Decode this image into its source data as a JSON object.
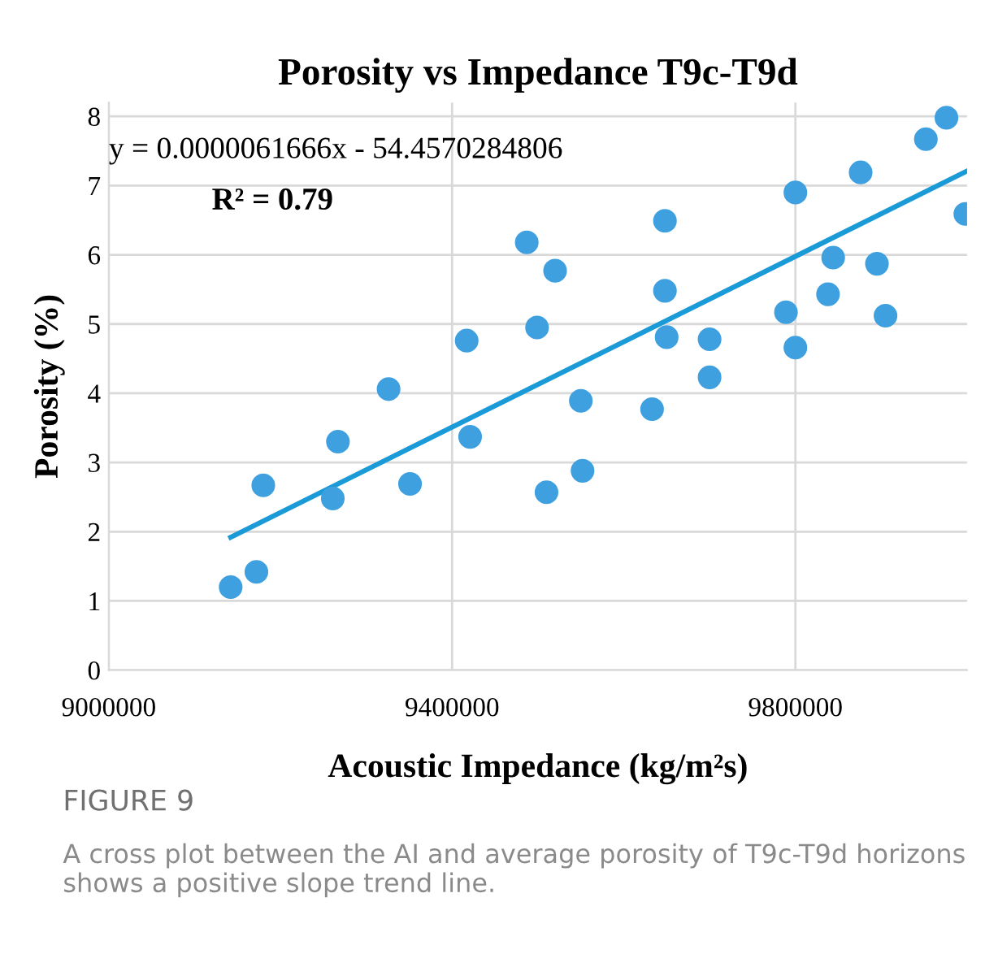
{
  "chart_data": {
    "type": "scatter",
    "title": "Porosity vs Impedance T9c-T9d",
    "xlabel": "Acoustic Impedance (kg/m²s)",
    "ylabel": "Porosity (%)",
    "annotations": [
      "y = 0.0000061666x - 54.4570284806",
      "R² = 0.79",
      "FIGURE 9",
      "A cross plot between the AI and average porosity of T9c-T9d horizons shows a positive slope trend line."
    ],
    "series": [
      {
        "color": "#3fa0e0",
        "marker": "circle",
        "x": [
          9142000,
          9172000,
          9180000,
          9267000,
          9261000,
          9326000,
          9351000,
          9417000,
          9421000,
          9487000,
          9520000,
          9499000,
          9510000,
          9550000,
          9552000,
          9648000,
          9648000,
          9650000,
          9633000,
          9700000,
          9700000,
          9789000,
          9800000,
          9800000,
          9838000,
          9844000,
          9876000,
          9895000,
          9905000,
          9952000,
          9976000,
          9998000
        ],
        "values": [
          1.2,
          1.42,
          2.67,
          3.3,
          2.48,
          4.06,
          2.69,
          4.76,
          3.37,
          6.18,
          5.77,
          4.95,
          2.57,
          3.89,
          2.88,
          6.49,
          5.48,
          4.81,
          3.77,
          4.78,
          4.23,
          5.17,
          6.9,
          4.66,
          5.43,
          5.96,
          7.19,
          5.87,
          5.12,
          7.67,
          7.98,
          6.59
        ]
      },
      {
        "type": "line",
        "color": "#1a9ad6",
        "line_style": "solid",
        "x": [
          9142000,
          10000000
        ],
        "values": [
          1.92,
          7.21
        ]
      }
    ],
    "xlim": [
      9000000,
      10000000
    ],
    "xticks": [
      9000000,
      9400000,
      9800000
    ],
    "ylim": [
      0,
      8.2
    ],
    "yticks": [
      0,
      1,
      2,
      3,
      4,
      5,
      6,
      7,
      8
    ],
    "grid": true,
    "legend": false
  }
}
